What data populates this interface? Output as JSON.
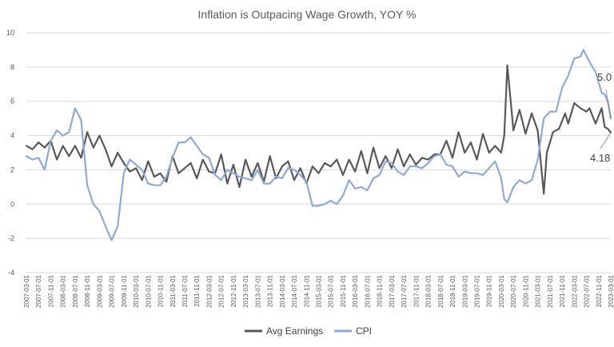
{
  "chart_data": {
    "type": "line",
    "title": "Inflation is Outpacing Wage Growth, YOY %",
    "ylim": [
      -4,
      10
    ],
    "yticks": [
      -4,
      -2,
      0,
      2,
      4,
      6,
      8,
      10
    ],
    "grid": true,
    "legend": "bottom",
    "x_start": "2007-03",
    "x_end": "2023-03",
    "xticks": [
      "2007-03-01",
      "2007-07-01",
      "2007-11-01",
      "2008-03-01",
      "2008-07-01",
      "2008-11-01",
      "2009-03-01",
      "2009-07-01",
      "2009-11-01",
      "2010-03-01",
      "2010-07-01",
      "2010-11-01",
      "2011-03-01",
      "2011-07-01",
      "2011-11-01",
      "2012-03-01",
      "2012-07-01",
      "2012-11-01",
      "2013-03-01",
      "2013-07-01",
      "2013-11-01",
      "2014-03-01",
      "2014-07-01",
      "2014-11-01",
      "2015-03-01",
      "2015-07-01",
      "2015-11-01",
      "2016-03-01",
      "2016-07-01",
      "2016-11-01",
      "2017-03-01",
      "2017-07-01",
      "2017-11-01",
      "2018-03-01",
      "2018-07-01",
      "2018-11-01",
      "2019-03-01",
      "2019-07-01",
      "2019-11-01",
      "2020-03-01",
      "2020-07-01",
      "2020-11-01",
      "2021-03-01",
      "2021-07-01",
      "2021-11-01",
      "2022-03-01",
      "2022-07-01",
      "2022-11-01",
      "2023-03-01"
    ],
    "series": [
      {
        "name": "Avg Earnings",
        "color": "#595959",
        "points": [
          [
            "2007-03",
            3.4
          ],
          [
            "2007-05",
            3.2
          ],
          [
            "2007-07",
            3.6
          ],
          [
            "2007-09",
            3.3
          ],
          [
            "2007-11",
            3.7
          ],
          [
            "2008-01",
            2.6
          ],
          [
            "2008-03",
            3.4
          ],
          [
            "2008-05",
            2.8
          ],
          [
            "2008-07",
            3.4
          ],
          [
            "2008-09",
            2.7
          ],
          [
            "2008-11",
            4.2
          ],
          [
            "2009-01",
            3.3
          ],
          [
            "2009-03",
            4.0
          ],
          [
            "2009-05",
            3.2
          ],
          [
            "2009-07",
            2.2
          ],
          [
            "2009-09",
            3.0
          ],
          [
            "2009-11",
            2.4
          ],
          [
            "2010-01",
            1.9
          ],
          [
            "2010-03",
            2.1
          ],
          [
            "2010-05",
            1.4
          ],
          [
            "2010-07",
            2.5
          ],
          [
            "2010-09",
            1.6
          ],
          [
            "2010-11",
            1.8
          ],
          [
            "2011-01",
            1.3
          ],
          [
            "2011-03",
            2.8
          ],
          [
            "2011-05",
            1.8
          ],
          [
            "2011-07",
            2.1
          ],
          [
            "2011-09",
            2.4
          ],
          [
            "2011-11",
            1.5
          ],
          [
            "2012-01",
            2.6
          ],
          [
            "2012-03",
            1.9
          ],
          [
            "2012-05",
            1.8
          ],
          [
            "2012-07",
            2.9
          ],
          [
            "2012-09",
            1.2
          ],
          [
            "2012-11",
            2.3
          ],
          [
            "2013-01",
            1.0
          ],
          [
            "2013-03",
            2.6
          ],
          [
            "2013-05",
            1.6
          ],
          [
            "2013-07",
            2.4
          ],
          [
            "2013-09",
            1.3
          ],
          [
            "2013-11",
            2.8
          ],
          [
            "2014-01",
            1.5
          ],
          [
            "2014-03",
            2.2
          ],
          [
            "2014-05",
            2.5
          ],
          [
            "2014-07",
            1.4
          ],
          [
            "2014-09",
            2.1
          ],
          [
            "2014-11",
            1.2
          ],
          [
            "2015-01",
            2.2
          ],
          [
            "2015-03",
            1.8
          ],
          [
            "2015-05",
            2.4
          ],
          [
            "2015-07",
            2.2
          ],
          [
            "2015-09",
            2.6
          ],
          [
            "2015-11",
            1.7
          ],
          [
            "2016-01",
            2.6
          ],
          [
            "2016-03",
            1.9
          ],
          [
            "2016-05",
            3.1
          ],
          [
            "2016-07",
            1.8
          ],
          [
            "2016-09",
            3.3
          ],
          [
            "2016-11",
            2.1
          ],
          [
            "2017-01",
            2.8
          ],
          [
            "2017-03",
            2.1
          ],
          [
            "2017-05",
            3.2
          ],
          [
            "2017-07",
            2.2
          ],
          [
            "2017-09",
            2.9
          ],
          [
            "2017-11",
            2.3
          ],
          [
            "2018-01",
            2.7
          ],
          [
            "2018-03",
            2.6
          ],
          [
            "2018-05",
            2.9
          ],
          [
            "2018-07",
            2.9
          ],
          [
            "2018-09",
            3.7
          ],
          [
            "2018-11",
            2.7
          ],
          [
            "2019-01",
            4.2
          ],
          [
            "2019-03",
            3.0
          ],
          [
            "2019-05",
            3.6
          ],
          [
            "2019-07",
            2.6
          ],
          [
            "2019-09",
            4.1
          ],
          [
            "2019-11",
            3.0
          ],
          [
            "2020-01",
            3.4
          ],
          [
            "2020-03",
            3.0
          ],
          [
            "2020-04",
            4.0
          ],
          [
            "2020-05",
            8.1
          ],
          [
            "2020-07",
            4.3
          ],
          [
            "2020-09",
            5.5
          ],
          [
            "2020-11",
            4.1
          ],
          [
            "2021-01",
            5.3
          ],
          [
            "2021-03",
            4.3
          ],
          [
            "2021-05",
            0.6
          ],
          [
            "2021-06",
            3.0
          ],
          [
            "2021-08",
            4.2
          ],
          [
            "2021-10",
            4.4
          ],
          [
            "2021-12",
            5.3
          ],
          [
            "2022-01",
            4.7
          ],
          [
            "2022-03",
            5.9
          ],
          [
            "2022-05",
            5.6
          ],
          [
            "2022-07",
            5.4
          ],
          [
            "2022-08",
            5.6
          ],
          [
            "2022-10",
            4.7
          ],
          [
            "2022-12",
            5.6
          ],
          [
            "2023-01",
            4.5
          ],
          [
            "2023-02",
            4.4
          ],
          [
            "2023-03",
            4.18
          ]
        ]
      },
      {
        "name": "CPI",
        "color": "#8fa9db",
        "points": [
          [
            "2007-03",
            2.8
          ],
          [
            "2007-05",
            2.6
          ],
          [
            "2007-07",
            2.7
          ],
          [
            "2007-09",
            2.0
          ],
          [
            "2007-11",
            3.7
          ],
          [
            "2008-01",
            4.3
          ],
          [
            "2008-03",
            4.0
          ],
          [
            "2008-05",
            4.2
          ],
          [
            "2008-07",
            5.6
          ],
          [
            "2008-09",
            4.9
          ],
          [
            "2008-11",
            1.1
          ],
          [
            "2009-01",
            0.0
          ],
          [
            "2009-03",
            -0.4
          ],
          [
            "2009-05",
            -1.3
          ],
          [
            "2009-07",
            -2.1
          ],
          [
            "2009-09",
            -1.3
          ],
          [
            "2009-11",
            1.8
          ],
          [
            "2010-01",
            2.6
          ],
          [
            "2010-03",
            2.3
          ],
          [
            "2010-05",
            2.0
          ],
          [
            "2010-07",
            1.2
          ],
          [
            "2010-09",
            1.1
          ],
          [
            "2010-11",
            1.1
          ],
          [
            "2011-01",
            1.6
          ],
          [
            "2011-03",
            2.7
          ],
          [
            "2011-05",
            3.6
          ],
          [
            "2011-07",
            3.6
          ],
          [
            "2011-09",
            3.9
          ],
          [
            "2011-11",
            3.4
          ],
          [
            "2012-01",
            2.9
          ],
          [
            "2012-03",
            2.7
          ],
          [
            "2012-05",
            1.7
          ],
          [
            "2012-07",
            1.4
          ],
          [
            "2012-09",
            2.0
          ],
          [
            "2012-11",
            1.8
          ],
          [
            "2013-01",
            1.6
          ],
          [
            "2013-03",
            1.5
          ],
          [
            "2013-05",
            1.4
          ],
          [
            "2013-07",
            2.0
          ],
          [
            "2013-09",
            1.2
          ],
          [
            "2013-11",
            1.2
          ],
          [
            "2014-01",
            1.6
          ],
          [
            "2014-03",
            1.5
          ],
          [
            "2014-05",
            2.1
          ],
          [
            "2014-07",
            2.0
          ],
          [
            "2014-09",
            1.7
          ],
          [
            "2014-11",
            1.3
          ],
          [
            "2015-01",
            -0.1
          ],
          [
            "2015-03",
            -0.1
          ],
          [
            "2015-05",
            0.0
          ],
          [
            "2015-07",
            0.2
          ],
          [
            "2015-09",
            0.0
          ],
          [
            "2015-11",
            0.5
          ],
          [
            "2016-01",
            1.4
          ],
          [
            "2016-03",
            0.9
          ],
          [
            "2016-05",
            1.0
          ],
          [
            "2016-07",
            0.8
          ],
          [
            "2016-09",
            1.5
          ],
          [
            "2016-11",
            1.7
          ],
          [
            "2017-01",
            2.5
          ],
          [
            "2017-03",
            2.4
          ],
          [
            "2017-05",
            1.9
          ],
          [
            "2017-07",
            1.7
          ],
          [
            "2017-09",
            2.2
          ],
          [
            "2017-11",
            2.2
          ],
          [
            "2018-01",
            2.1
          ],
          [
            "2018-03",
            2.4
          ],
          [
            "2018-05",
            2.8
          ],
          [
            "2018-07",
            2.9
          ],
          [
            "2018-09",
            2.3
          ],
          [
            "2018-11",
            2.2
          ],
          [
            "2019-01",
            1.6
          ],
          [
            "2019-03",
            1.9
          ],
          [
            "2019-05",
            1.8
          ],
          [
            "2019-07",
            1.8
          ],
          [
            "2019-09",
            1.7
          ],
          [
            "2019-11",
            2.1
          ],
          [
            "2020-01",
            2.5
          ],
          [
            "2020-03",
            1.5
          ],
          [
            "2020-04",
            0.3
          ],
          [
            "2020-05",
            0.1
          ],
          [
            "2020-07",
            1.0
          ],
          [
            "2020-09",
            1.4
          ],
          [
            "2020-11",
            1.2
          ],
          [
            "2021-01",
            1.4
          ],
          [
            "2021-03",
            2.6
          ],
          [
            "2021-05",
            5.0
          ],
          [
            "2021-07",
            5.4
          ],
          [
            "2021-09",
            5.4
          ],
          [
            "2021-11",
            6.8
          ],
          [
            "2022-01",
            7.5
          ],
          [
            "2022-03",
            8.5
          ],
          [
            "2022-05",
            8.6
          ],
          [
            "2022-06",
            9.0
          ],
          [
            "2022-08",
            8.3
          ],
          [
            "2022-10",
            7.7
          ],
          [
            "2022-12",
            6.5
          ],
          [
            "2023-01",
            6.4
          ],
          [
            "2023-02",
            6.0
          ],
          [
            "2023-03",
            5.0
          ]
        ]
      }
    ],
    "annotations": [
      {
        "text": "5.0",
        "x": "2023-03",
        "y": 5.0
      },
      {
        "text": "4.18",
        "x": "2023-03",
        "y": 4.18
      }
    ]
  }
}
